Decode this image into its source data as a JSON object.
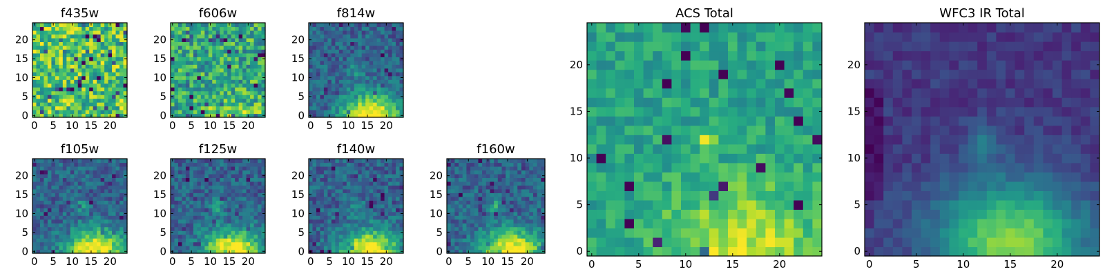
{
  "figure": {
    "background": "#ffffff"
  },
  "chart_data": [
    {
      "type": "heatmap",
      "title": "f435w",
      "pattern": "noise",
      "seed": 11,
      "grid": [
        25,
        25
      ],
      "xlim": [
        0,
        24
      ],
      "ylim": [
        0,
        24
      ],
      "xticks": [
        0,
        5,
        10,
        15,
        20
      ],
      "yticks": [
        0,
        5,
        10,
        15,
        20
      ],
      "colormap": "viridis"
    },
    {
      "type": "heatmap",
      "title": "f606w",
      "pattern": "noise-warm",
      "seed": 22,
      "grid": [
        25,
        25
      ],
      "xlim": [
        0,
        24
      ],
      "ylim": [
        0,
        24
      ],
      "xticks": [
        0,
        5,
        10,
        15,
        20
      ],
      "yticks": [
        0,
        5,
        10,
        15,
        20
      ],
      "colormap": "viridis"
    },
    {
      "type": "heatmap",
      "title": "f814w",
      "pattern": "blob",
      "seed": 33,
      "grid": [
        25,
        25
      ],
      "xlim": [
        0,
        24
      ],
      "ylim": [
        0,
        24
      ],
      "xticks": [
        0,
        5,
        10,
        15,
        20
      ],
      "yticks": [
        0,
        5,
        10,
        15,
        20
      ],
      "colormap": "viridis"
    },
    {
      "type": "heatmap",
      "title": "f105w",
      "pattern": "blob",
      "seed": 44,
      "grid": [
        25,
        25
      ],
      "xlim": [
        0,
        24
      ],
      "ylim": [
        0,
        24
      ],
      "xticks": [
        0,
        5,
        10,
        15,
        20
      ],
      "yticks": [
        0,
        5,
        10,
        15,
        20
      ],
      "colormap": "viridis"
    },
    {
      "type": "heatmap",
      "title": "f125w",
      "pattern": "blob",
      "seed": 55,
      "grid": [
        25,
        25
      ],
      "xlim": [
        0,
        24
      ],
      "ylim": [
        0,
        24
      ],
      "xticks": [
        0,
        5,
        10,
        15,
        20
      ],
      "yticks": [
        0,
        5,
        10,
        15,
        20
      ],
      "colormap": "viridis"
    },
    {
      "type": "heatmap",
      "title": "f140w",
      "pattern": "blob",
      "seed": 66,
      "grid": [
        25,
        25
      ],
      "xlim": [
        0,
        24
      ],
      "ylim": [
        0,
        24
      ],
      "xticks": [
        0,
        5,
        10,
        15,
        20
      ],
      "yticks": [
        0,
        5,
        10,
        15,
        20
      ],
      "colormap": "viridis"
    },
    {
      "type": "heatmap",
      "title": "f160w",
      "pattern": "blob",
      "seed": 77,
      "grid": [
        25,
        25
      ],
      "xlim": [
        0,
        24
      ],
      "ylim": [
        0,
        24
      ],
      "xticks": [
        0,
        5,
        10,
        15,
        20
      ],
      "yticks": [
        0,
        5,
        10,
        15,
        20
      ],
      "colormap": "viridis"
    },
    {
      "type": "heatmap",
      "title": "ACS Total",
      "pattern": "acs",
      "seed": 88,
      "grid": [
        25,
        25
      ],
      "xlim": [
        0,
        24
      ],
      "ylim": [
        0,
        24
      ],
      "xticks": [
        0,
        5,
        10,
        15,
        20
      ],
      "yticks": [
        0,
        5,
        10,
        15,
        20
      ],
      "colormap": "viridis"
    },
    {
      "type": "heatmap",
      "title": "WFC3 IR Total",
      "pattern": "wfc3",
      "seed": 99,
      "grid": [
        25,
        25
      ],
      "xlim": [
        0,
        24
      ],
      "ylim": [
        0,
        24
      ],
      "xticks": [
        0,
        5,
        10,
        15,
        20
      ],
      "yticks": [
        0,
        5,
        10,
        15,
        20
      ],
      "colormap": "viridis"
    }
  ]
}
